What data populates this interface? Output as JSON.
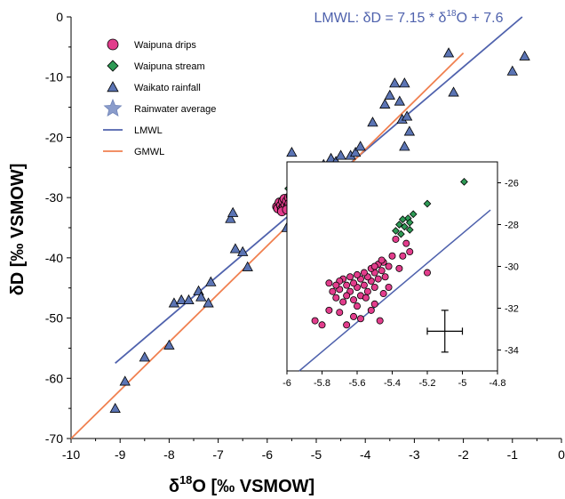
{
  "chart_data": [
    {
      "type": "scatter",
      "equation_prefix": "LMWL: δD = 7.15 * δ",
      "equation_sup": "18",
      "equation_suffix": "O + 7.6",
      "xlabel_prefix": "δ",
      "xlabel_sup": "18",
      "xlabel_suffix": "O [‰ VSMOW]",
      "ylabel": "δD [‰ VSMOW]",
      "xlim": [
        -10,
        0
      ],
      "ylim": [
        -70,
        0
      ],
      "xticks": [
        "-10",
        "-9",
        "-8",
        "-7",
        "-6",
        "-5",
        "-4",
        "-3",
        "-2",
        "-1",
        "0"
      ],
      "yticks": [
        "-70",
        "-60",
        "-50",
        "-40",
        "-30",
        "-20",
        "-10",
        "0"
      ],
      "legend": [
        {
          "label": "Waipuna drips",
          "marker": "circle",
          "color": "#e23d8c"
        },
        {
          "label": "Waipuna stream",
          "marker": "diamond",
          "color": "#2e9a55"
        },
        {
          "label": "Waikato rainfall",
          "marker": "triangle",
          "color": "#5b74b4"
        },
        {
          "label": "Rainwater average",
          "marker": "star",
          "color": "#8a9ccb"
        },
        {
          "label": "LMWL",
          "marker": "line",
          "color": "#4f62ad"
        },
        {
          "label": "GMWL",
          "marker": "line",
          "color": "#f08050"
        }
      ],
      "series": [
        {
          "name": "Waikato rainfall",
          "marker": "triangle",
          "color": "#5b74b4",
          "points": [
            [
              -9.1,
              -65
            ],
            [
              -8.9,
              -60.5
            ],
            [
              -8.5,
              -56.5
            ],
            [
              -8.0,
              -54.5
            ],
            [
              -7.9,
              -47.5
            ],
            [
              -7.75,
              -47
            ],
            [
              -7.6,
              -47
            ],
            [
              -7.4,
              -45.5
            ],
            [
              -7.35,
              -46.5
            ],
            [
              -7.2,
              -47.5
            ],
            [
              -7.15,
              -44
            ],
            [
              -6.75,
              -33.5
            ],
            [
              -6.7,
              -32.5
            ],
            [
              -6.65,
              -38.5
            ],
            [
              -6.5,
              -39
            ],
            [
              -6.4,
              -41.5
            ],
            [
              -5.6,
              -35
            ],
            [
              -5.5,
              -22.5
            ],
            [
              -5.3,
              -25.5
            ],
            [
              -5.15,
              -27.5
            ],
            [
              -5.0,
              -27.5
            ],
            [
              -4.85,
              -24.5
            ],
            [
              -4.7,
              -23.5
            ],
            [
              -4.6,
              -24
            ],
            [
              -4.5,
              -23
            ],
            [
              -4.3,
              -23
            ],
            [
              -4.2,
              -22.5
            ],
            [
              -4.1,
              -21.5
            ],
            [
              -4.0,
              -25.5
            ],
            [
              -3.85,
              -17.5
            ],
            [
              -3.6,
              -14.5
            ],
            [
              -3.5,
              -13
            ],
            [
              -3.4,
              -11
            ],
            [
              -3.3,
              -14
            ],
            [
              -3.25,
              -17
            ],
            [
              -3.2,
              -11
            ],
            [
              -3.15,
              -16.5
            ],
            [
              -3.1,
              -19
            ],
            [
              -3.2,
              -21.5
            ],
            [
              -2.3,
              -6
            ],
            [
              -2.2,
              -12.5
            ],
            [
              -1.0,
              -9
            ],
            [
              -0.75,
              -6.5
            ]
          ]
        },
        {
          "name": "Waipuna stream",
          "marker": "diamond",
          "color": "#2e9a55",
          "points": [
            [
              -5.3,
              -26.2
            ],
            [
              -5.35,
              -26.8
            ],
            [
              -5.4,
              -27
            ],
            [
              -5.45,
              -27.5
            ],
            [
              -5.5,
              -27.7
            ],
            [
              -5.55,
              -28.5
            ]
          ]
        },
        {
          "name": "Waipuna drips",
          "marker": "circle",
          "color": "#e23d8c",
          "points": [
            [
              -5.8,
              -31.5
            ],
            [
              -5.78,
              -31.8
            ],
            [
              -5.75,
              -30.8
            ],
            [
              -5.72,
              -31.3
            ],
            [
              -5.7,
              -31.9
            ],
            [
              -5.68,
              -30.6
            ],
            [
              -5.66,
              -31.6
            ],
            [
              -5.65,
              -30.2
            ],
            [
              -5.63,
              -31.2
            ],
            [
              -5.6,
              -30.6
            ],
            [
              -5.58,
              -31.5
            ],
            [
              -5.56,
              -30.0
            ],
            [
              -5.55,
              -31.0
            ],
            [
              -5.52,
              -29.8
            ],
            [
              -5.5,
              -30.5
            ],
            [
              -5.48,
              -29.6
            ],
            [
              -5.46,
              -30.8
            ],
            [
              -5.45,
              -29.4
            ],
            [
              -5.7,
              -32.3
            ],
            [
              -5.6,
              -32.0
            ],
            [
              -5.5,
              -31.6
            ]
          ]
        },
        {
          "name": "Rainwater average",
          "marker": "star",
          "color": "#8a9ccb",
          "points": [
            [
              -5.1,
              -29.3
            ]
          ]
        }
      ],
      "lines": [
        {
          "name": "LMWL",
          "color": "#4f62ad",
          "from": [
            -9.1,
            -57.5
          ],
          "to": [
            -0.8,
            0
          ]
        },
        {
          "name": "GMWL",
          "color": "#f08050",
          "from": [
            -10,
            -70
          ],
          "to": [
            -2,
            -6
          ]
        }
      ]
    },
    {
      "type": "scatter",
      "role": "inset",
      "xlim": [
        -6,
        -4.8
      ],
      "ylim": [
        -35,
        -25
      ],
      "xticks": [
        "-6",
        "-5.8",
        "-5.6",
        "-5.4",
        "-5.2",
        "-5",
        "-4.8"
      ],
      "yticks": [
        "-26",
        "-28",
        "-30",
        "-32",
        "-34"
      ],
      "series": [
        {
          "name": "Waipuna stream",
          "marker": "diamond",
          "color": "#2e9a55",
          "points": [
            [
              -4.99,
              -25.95
            ],
            [
              -5.2,
              -27.0
            ],
            [
              -5.28,
              -27.5
            ],
            [
              -5.31,
              -27.7
            ],
            [
              -5.34,
              -27.75
            ],
            [
              -5.3,
              -27.9
            ],
            [
              -5.36,
              -28.0
            ],
            [
              -5.33,
              -28.1
            ],
            [
              -5.3,
              -28.25
            ],
            [
              -5.38,
              -28.3
            ],
            [
              -5.35,
              -28.45
            ]
          ]
        },
        {
          "name": "Waipuna drips",
          "marker": "circle",
          "color": "#e23d8c",
          "points": [
            [
              -5.2,
              -30.3
            ],
            [
              -5.3,
              -29.3
            ],
            [
              -5.32,
              -28.9
            ],
            [
              -5.38,
              -28.7
            ],
            [
              -5.4,
              -29.5
            ],
            [
              -5.42,
              -30.0
            ],
            [
              -5.45,
              -29.8
            ],
            [
              -5.44,
              -30.5
            ],
            [
              -5.46,
              -30.2
            ],
            [
              -5.48,
              -30.6
            ],
            [
              -5.48,
              -29.9
            ],
            [
              -5.5,
              -30.3
            ],
            [
              -5.5,
              -31.0
            ],
            [
              -5.52,
              -30.7
            ],
            [
              -5.52,
              -30.1
            ],
            [
              -5.54,
              -31.2
            ],
            [
              -5.54,
              -30.5
            ],
            [
              -5.56,
              -30.9
            ],
            [
              -5.56,
              -30.3
            ],
            [
              -5.58,
              -31.4
            ],
            [
              -5.58,
              -30.6
            ],
            [
              -5.6,
              -31.0
            ],
            [
              -5.6,
              -30.4
            ],
            [
              -5.62,
              -31.6
            ],
            [
              -5.62,
              -30.8
            ],
            [
              -5.64,
              -31.2
            ],
            [
              -5.64,
              -30.5
            ],
            [
              -5.66,
              -31.4
            ],
            [
              -5.66,
              -30.9
            ],
            [
              -5.68,
              -30.6
            ],
            [
              -5.68,
              -31.7
            ],
            [
              -5.7,
              -31.1
            ],
            [
              -5.7,
              -30.7
            ],
            [
              -5.72,
              -31.5
            ],
            [
              -5.72,
              -30.9
            ],
            [
              -5.74,
              -31.2
            ],
            [
              -5.76,
              -30.8
            ],
            [
              -5.6,
              -31.9
            ],
            [
              -5.55,
              -31.5
            ],
            [
              -5.5,
              -31.8
            ],
            [
              -5.45,
              -31.3
            ],
            [
              -5.42,
              -31.0
            ],
            [
              -5.58,
              -32.5
            ],
            [
              -5.62,
              -32.4
            ],
            [
              -5.66,
              -32.8
            ],
            [
              -5.7,
              -32.2
            ],
            [
              -5.8,
              -32.8
            ],
            [
              -5.84,
              -32.6
            ],
            [
              -5.76,
              -32.1
            ],
            [
              -5.52,
              -32.1
            ],
            [
              -5.47,
              -32.6
            ],
            [
              -5.36,
              -30.1
            ],
            [
              -5.34,
              -29.5
            ],
            [
              -5.5,
              -30.0
            ],
            [
              -5.46,
              -29.7
            ]
          ]
        }
      ],
      "lines": [
        {
          "name": "LMWL",
          "color": "#4f62ad",
          "from": [
            -5.93,
            -35
          ],
          "to": [
            -4.84,
            -27.3
          ]
        }
      ],
      "error_bar": {
        "center": [
          -5.1,
          -33.1
        ],
        "x_halfwidth": 0.1,
        "y_halfwidth": 1.0
      }
    }
  ]
}
